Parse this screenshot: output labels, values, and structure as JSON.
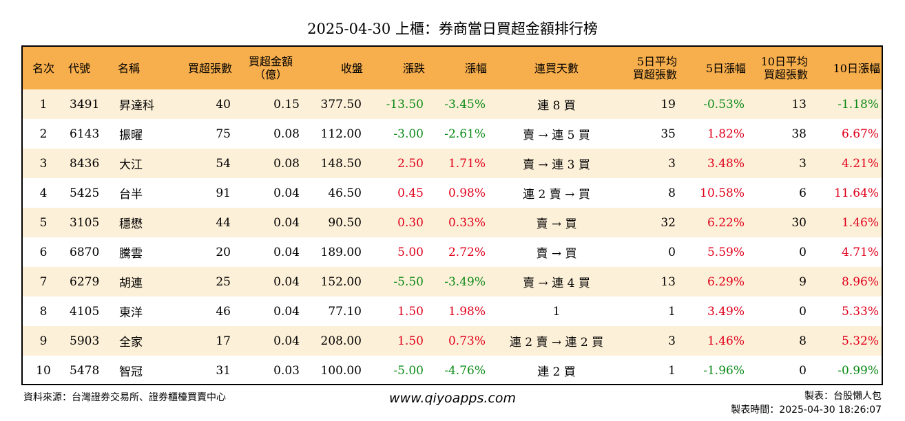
{
  "title": "2025-04-30 上櫃：券商當日買超金額排行榜",
  "colors": {
    "header_bg": "#f7ae4c",
    "row_alt_bg": "#fdf0d8",
    "up": "#e0001b",
    "down": "#0a8a16"
  },
  "table": {
    "headers": {
      "rank": "名次",
      "code": "代號",
      "name": "名稱",
      "net_shares": "買超張數",
      "net_amount_l1": "買超金額",
      "net_amount_l2": "（億）",
      "close": "收盤",
      "change": "漲跌",
      "change_pct": "漲幅",
      "streak": "連買天數",
      "avg5_l1": "5日平均",
      "avg5_l2": "買超張數",
      "pct5": "5日漲幅",
      "avg10_l1": "10日平均",
      "avg10_l2": "買超張數",
      "pct10": "10日漲幅"
    },
    "rows": [
      {
        "rank": "1",
        "code": "3491",
        "name": "昇達科",
        "net_shares": "40",
        "net_amount": "0.15",
        "close": "377.50",
        "change": "-13.50",
        "change_pct": "-3.45%",
        "streak": "連 8 買",
        "avg5": "19",
        "pct5": "-0.53%",
        "avg10": "13",
        "pct10": "-1.18%"
      },
      {
        "rank": "2",
        "code": "6143",
        "name": "振曜",
        "net_shares": "75",
        "net_amount": "0.08",
        "close": "112.00",
        "change": "-3.00",
        "change_pct": "-2.61%",
        "streak": "賣 → 連 5 買",
        "avg5": "35",
        "pct5": "1.82%",
        "avg10": "38",
        "pct10": "6.67%"
      },
      {
        "rank": "3",
        "code": "8436",
        "name": "大江",
        "net_shares": "54",
        "net_amount": "0.08",
        "close": "148.50",
        "change": "2.50",
        "change_pct": "1.71%",
        "streak": "賣 → 連 3 買",
        "avg5": "3",
        "pct5": "3.48%",
        "avg10": "3",
        "pct10": "4.21%"
      },
      {
        "rank": "4",
        "code": "5425",
        "name": "台半",
        "net_shares": "91",
        "net_amount": "0.04",
        "close": "46.50",
        "change": "0.45",
        "change_pct": "0.98%",
        "streak": "連 2 賣 → 買",
        "avg5": "8",
        "pct5": "10.58%",
        "avg10": "6",
        "pct10": "11.64%"
      },
      {
        "rank": "5",
        "code": "3105",
        "name": "穩懋",
        "net_shares": "44",
        "net_amount": "0.04",
        "close": "90.50",
        "change": "0.30",
        "change_pct": "0.33%",
        "streak": "賣 → 買",
        "avg5": "32",
        "pct5": "6.22%",
        "avg10": "30",
        "pct10": "1.46%"
      },
      {
        "rank": "6",
        "code": "6870",
        "name": "騰雲",
        "net_shares": "20",
        "net_amount": "0.04",
        "close": "189.00",
        "change": "5.00",
        "change_pct": "2.72%",
        "streak": "賣 → 買",
        "avg5": "0",
        "pct5": "5.59%",
        "avg10": "0",
        "pct10": "4.71%"
      },
      {
        "rank": "7",
        "code": "6279",
        "name": "胡連",
        "net_shares": "25",
        "net_amount": "0.04",
        "close": "152.00",
        "change": "-5.50",
        "change_pct": "-3.49%",
        "streak": "賣 → 連 4 買",
        "avg5": "13",
        "pct5": "6.29%",
        "avg10": "9",
        "pct10": "8.96%"
      },
      {
        "rank": "8",
        "code": "4105",
        "name": "東洋",
        "net_shares": "46",
        "net_amount": "0.04",
        "close": "77.10",
        "change": "1.50",
        "change_pct": "1.98%",
        "streak": "1",
        "avg5": "1",
        "pct5": "3.49%",
        "avg10": "0",
        "pct10": "5.33%"
      },
      {
        "rank": "9",
        "code": "5903",
        "name": "全家",
        "net_shares": "17",
        "net_amount": "0.04",
        "close": "208.00",
        "change": "1.50",
        "change_pct": "0.73%",
        "streak": "連 2 賣 → 連 2 買",
        "avg5": "3",
        "pct5": "1.46%",
        "avg10": "8",
        "pct10": "5.32%"
      },
      {
        "rank": "10",
        "code": "5478",
        "name": "智冠",
        "net_shares": "31",
        "net_amount": "0.03",
        "close": "100.00",
        "change": "-5.00",
        "change_pct": "-4.76%",
        "streak": "連 2 買",
        "avg5": "1",
        "pct5": "-1.96%",
        "avg10": "0",
        "pct10": "-0.99%"
      }
    ]
  },
  "footer": {
    "source": "資料來源：台灣證券交易所、證券櫃檯買賣中心",
    "website": "www.qiyoapps.com",
    "author": "製表：台股懶人包",
    "made_at": "製表時間：2025-04-30 18:26:07"
  }
}
